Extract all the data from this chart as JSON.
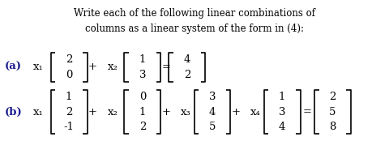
{
  "title_line1": "Write each of the following linear combinations of",
  "title_line2": "columns as a linear system of the form in (4):",
  "background_color": "#ffffff",
  "text_color": "#000000",
  "label_color": "#1a1a8c",
  "figsize": [
    4.81,
    1.9
  ],
  "dpi": 100,
  "part_a": {
    "label": "(a)",
    "var1": "x₁",
    "vec1": [
      "2",
      "0"
    ],
    "op1": "+",
    "var2": "x₂",
    "vec2": [
      "1",
      "3"
    ],
    "eq": "=",
    "rhs": [
      "4",
      "2"
    ]
  },
  "part_b": {
    "label": "(b)",
    "var1": "x₁",
    "vec1": [
      "1",
      "2",
      "-1"
    ],
    "op1": "+",
    "var2": "x₂",
    "vec2": [
      "0",
      "1",
      "2"
    ],
    "op2": "+",
    "var3": "x₃",
    "vec3": [
      "3",
      "4",
      "5"
    ],
    "op3": "+",
    "var4": "x₄",
    "vec4": [
      "1",
      "3",
      "4"
    ],
    "eq": "=",
    "rhs": [
      "2",
      "5",
      "8"
    ]
  }
}
